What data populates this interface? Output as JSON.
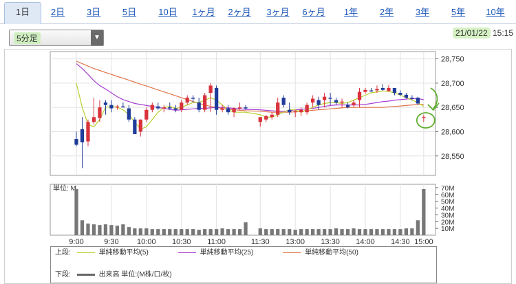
{
  "tabs": [
    {
      "label": "1日",
      "active": true
    },
    {
      "label": "2日"
    },
    {
      "label": "3日"
    },
    {
      "label": "5日"
    },
    {
      "label": "10日"
    },
    {
      "label": "1ヶ月"
    },
    {
      "label": "2ヶ月"
    },
    {
      "label": "3ヶ月"
    },
    {
      "label": "6ヶ月"
    },
    {
      "label": "1年"
    },
    {
      "label": "2年"
    },
    {
      "label": "3年"
    },
    {
      "label": "5年"
    },
    {
      "label": "10年"
    }
  ],
  "interval_select": {
    "value": "5分足"
  },
  "datetime": {
    "date": "21/01/22",
    "time": "15:15"
  },
  "colors": {
    "up": "#d8323c",
    "down": "#1f3c9a",
    "ma5": "#b9cf2e",
    "ma25": "#a73ed1",
    "ma50": "#e0764a",
    "volume": "#777777",
    "annotation": "#5fae2f"
  },
  "chart_data": [
    {
      "type": "candlestick",
      "y_ticks": [
        "28,750",
        "28,700",
        "28,650",
        "28,600",
        "28,550"
      ],
      "ylim": [
        28510,
        28765
      ],
      "x_ticks": [
        "9:00",
        "9:30",
        "10:00",
        "10:30",
        "11:00",
        "11:30",
        "13:00",
        "13:30",
        "14:00",
        "14:30",
        "15:00"
      ],
      "candles": [
        [
          28585,
          28600,
          28570,
          28573
        ],
        [
          28605,
          28630,
          28525,
          28578
        ],
        [
          28580,
          28625,
          28570,
          28620
        ],
        [
          28620,
          28670,
          28615,
          28630
        ],
        [
          28628,
          28665,
          28620,
          28650
        ],
        [
          28660,
          28665,
          28635,
          28655
        ],
        [
          28655,
          28665,
          28640,
          28648
        ],
        [
          28650,
          28655,
          28645,
          28652
        ],
        [
          28652,
          28660,
          28650,
          28650
        ],
        [
          28648,
          28655,
          28620,
          28625
        ],
        [
          28625,
          28630,
          28595,
          28595
        ],
        [
          28600,
          28625,
          28590,
          28625
        ],
        [
          28625,
          28650,
          28620,
          28645
        ],
        [
          28645,
          28660,
          28640,
          28655
        ],
        [
          28652,
          28660,
          28645,
          28648
        ],
        [
          28648,
          28655,
          28640,
          28650
        ],
        [
          28650,
          28660,
          28645,
          28648
        ],
        [
          28648,
          28655,
          28640,
          28645
        ],
        [
          28645,
          28665,
          28640,
          28660
        ],
        [
          28660,
          28675,
          28655,
          28670
        ],
        [
          28670,
          28675,
          28660,
          28668
        ],
        [
          28660,
          28670,
          28640,
          28645
        ],
        [
          28645,
          28680,
          28640,
          28675
        ],
        [
          28680,
          28700,
          28640,
          28695
        ],
        [
          28690,
          28695,
          28635,
          28645
        ],
        [
          28645,
          28655,
          28640,
          28648
        ],
        [
          28648,
          28655,
          28635,
          28640
        ],
        [
          28640,
          28650,
          28630,
          28648
        ],
        [
          28650,
          28660,
          28645,
          28650
        ],
        [
          28650,
          28655,
          28645,
          28648
        ],
        [
          28620,
          28630,
          28610,
          28630
        ],
        [
          28625,
          28635,
          28620,
          28632
        ],
        [
          28630,
          28640,
          28625,
          28635
        ],
        [
          28635,
          28670,
          28630,
          28660
        ],
        [
          28670,
          28675,
          28650,
          28655
        ],
        [
          28645,
          28660,
          28635,
          28640
        ],
        [
          28640,
          28645,
          28630,
          28642
        ],
        [
          28640,
          28650,
          28632,
          28645
        ],
        [
          28640,
          28660,
          28635,
          28655
        ],
        [
          28660,
          28675,
          28650,
          28668
        ],
        [
          28665,
          28672,
          28645,
          28655
        ],
        [
          28665,
          28680,
          28650,
          28672
        ],
        [
          28670,
          28680,
          28655,
          28668
        ],
        [
          28665,
          28670,
          28655,
          28660
        ],
        [
          28660,
          28668,
          28650,
          28662
        ],
        [
          28655,
          28660,
          28648,
          28650
        ],
        [
          28655,
          28665,
          28650,
          28660
        ],
        [
          28665,
          28690,
          28650,
          28682
        ],
        [
          28682,
          28690,
          28678,
          28686
        ],
        [
          28685,
          28690,
          28682,
          28684
        ],
        [
          28685,
          28695,
          28680,
          28688
        ],
        [
          28690,
          28698,
          28684,
          28686
        ],
        [
          28684,
          28696,
          28682,
          28690
        ],
        [
          28690,
          28690,
          28675,
          28680
        ],
        [
          28680,
          28685,
          28674,
          28676
        ],
        [
          28676,
          28680,
          28668,
          28670
        ],
        [
          28670,
          28675,
          28665,
          28668
        ],
        [
          28670,
          28672,
          28655,
          28658
        ],
        [
          28628,
          28635,
          28620,
          28630
        ]
      ],
      "ma5": [
        28700,
        28650,
        28615,
        28610,
        28625,
        28650,
        28652,
        28650,
        28645,
        28635,
        28620,
        28605,
        28610,
        28625,
        28640,
        28650,
        28652,
        28648,
        28650,
        28655,
        28660,
        28660,
        28665,
        28670,
        28665,
        28655,
        28645,
        28640,
        28640,
        28640,
        28635,
        28630,
        28630,
        28635,
        28640,
        28645,
        28645,
        28640,
        28645,
        28650,
        28655,
        28658,
        28660,
        28660,
        28658,
        28660,
        28665,
        28670,
        28675,
        28680,
        28682,
        28684,
        28683,
        28680,
        28675,
        28670,
        28665,
        28660,
        28652
      ],
      "ma25": [
        28740,
        28730,
        28718,
        28705,
        28695,
        28688,
        28680,
        28672,
        28666,
        28662,
        28658,
        28656,
        28654,
        28652,
        28650,
        28648,
        28646,
        28644,
        28645,
        28646,
        28647,
        28648,
        28648,
        28649,
        28650,
        28650,
        28649,
        28648,
        28647,
        28646,
        28645,
        28644,
        28643,
        28642,
        28642,
        28643,
        28645,
        28646,
        28647,
        28648,
        28650,
        28652,
        28654,
        28655,
        28655,
        28655,
        28655,
        28655,
        28656,
        28658,
        28660,
        28662,
        28663,
        28665,
        28666,
        28667,
        28668,
        28668,
        28666
      ],
      "ma50": [
        28745,
        28740,
        28735,
        28730,
        28726,
        28722,
        28718,
        28714,
        28710,
        28706,
        28702,
        28698,
        28694,
        28690,
        28686,
        28682,
        28678,
        28674,
        28670,
        28666,
        28662,
        28658,
        28655,
        28652,
        28650,
        28648,
        28646,
        28645,
        28644,
        28643,
        28642,
        28641,
        28640,
        28640,
        28640,
        28640,
        28641,
        28642,
        28643,
        28644,
        28645,
        28646,
        28647,
        28648,
        28649,
        28650,
        28650,
        28650,
        28650,
        28650,
        28650,
        28650,
        28651,
        28652,
        28653,
        28654,
        28655,
        28656,
        28656
      ],
      "volume_ticks": [
        "70M",
        "60M",
        "50M",
        "40M",
        "30M",
        "20M",
        "10M"
      ],
      "volume_unit_label": "単位: M",
      "volume_max": 75,
      "volume": [
        68,
        22,
        17,
        16,
        15,
        16,
        15,
        14,
        16,
        12,
        10,
        10,
        10,
        9,
        9,
        9,
        9,
        9,
        9,
        9,
        9,
        8,
        9,
        9,
        9,
        10,
        9,
        9,
        9,
        19,
        10,
        9,
        9,
        9,
        9,
        9,
        8,
        9,
        9,
        9,
        9,
        9,
        9,
        10,
        9,
        9,
        10,
        9,
        9,
        9,
        9,
        9,
        9,
        9,
        9,
        10,
        10,
        22,
        68
      ],
      "morning_count": 30
    }
  ],
  "legend": {
    "upper_label": "上段:",
    "lower_label": "下段:",
    "ma5": "単純移動平均(5)",
    "ma25": "単純移動平均(25)",
    "ma50": "単純移動平均(50)",
    "volume_text": "出来高 単位:(M株/口/枚)"
  }
}
